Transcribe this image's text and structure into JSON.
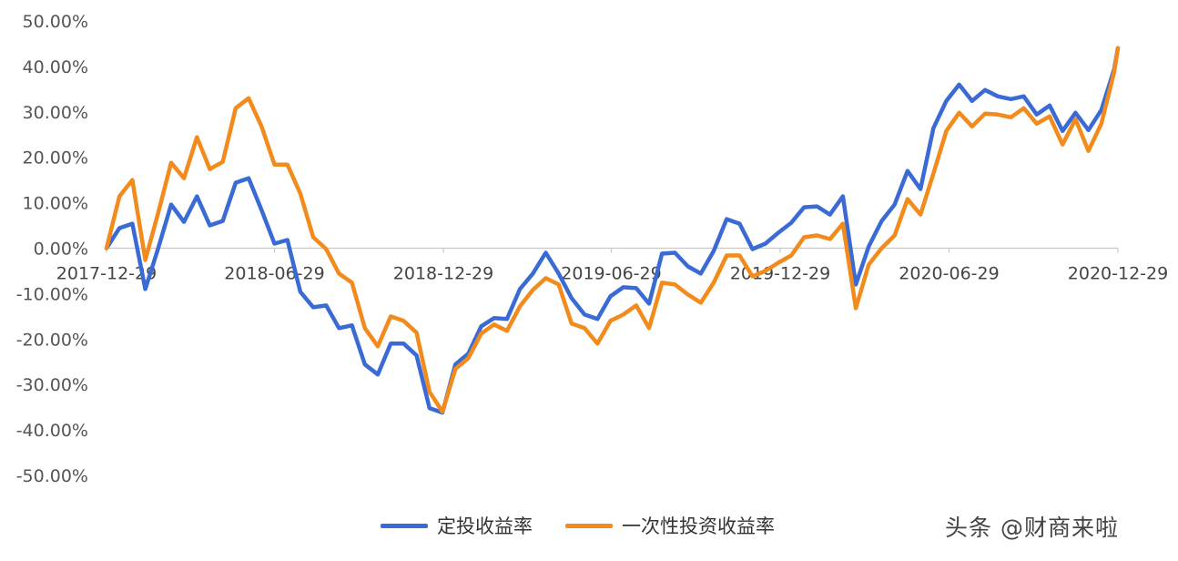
{
  "chart_data": {
    "type": "line",
    "title": "",
    "xlabel": "",
    "ylabel": "",
    "ylim": [
      -50,
      50
    ],
    "yticks": [
      "50.00%",
      "40.00%",
      "30.00%",
      "20.00%",
      "10.00%",
      "0.00%",
      "-10.00%",
      "-20.00%",
      "-30.00%",
      "-40.00%",
      "-50.00%"
    ],
    "ytick_values": [
      50,
      40,
      30,
      20,
      10,
      0,
      -10,
      -20,
      -30,
      -40,
      -50
    ],
    "xticks": [
      "2017-12-29",
      "2018-06-29",
      "2018-12-29",
      "2019-06-29",
      "2019-12-29",
      "2020-06-29",
      "2020-12-29"
    ],
    "xlim": [
      "2017-12-29",
      "2020-12-29"
    ],
    "grid": false,
    "legend_position": "bottom",
    "x": [
      "2017-12-29",
      "2018-01-12",
      "2018-01-26",
      "2018-02-09",
      "2018-02-23",
      "2018-03-09",
      "2018-03-23",
      "2018-04-06",
      "2018-04-20",
      "2018-05-04",
      "2018-05-18",
      "2018-06-01",
      "2018-06-15",
      "2018-06-29",
      "2018-07-13",
      "2018-07-27",
      "2018-08-10",
      "2018-08-24",
      "2018-09-07",
      "2018-09-21",
      "2018-10-05",
      "2018-10-19",
      "2018-11-02",
      "2018-11-16",
      "2018-11-30",
      "2018-12-14",
      "2018-12-28",
      "2019-01-11",
      "2019-01-25",
      "2019-02-08",
      "2019-02-22",
      "2019-03-08",
      "2019-03-22",
      "2019-04-05",
      "2019-04-19",
      "2019-05-03",
      "2019-05-17",
      "2019-05-31",
      "2019-06-14",
      "2019-06-28",
      "2019-07-12",
      "2019-07-26",
      "2019-08-09",
      "2019-08-23",
      "2019-09-06",
      "2019-09-20",
      "2019-10-04",
      "2019-10-18",
      "2019-11-01",
      "2019-11-15",
      "2019-11-29",
      "2019-12-13",
      "2019-12-27",
      "2020-01-10",
      "2020-01-24",
      "2020-02-07",
      "2020-02-21",
      "2020-03-06",
      "2020-03-20",
      "2020-04-03",
      "2020-04-17",
      "2020-05-01",
      "2020-05-15",
      "2020-05-29",
      "2020-06-12",
      "2020-06-26",
      "2020-07-10",
      "2020-07-24",
      "2020-08-07",
      "2020-08-21",
      "2020-09-04",
      "2020-09-18",
      "2020-10-02",
      "2020-10-16",
      "2020-10-30",
      "2020-11-13",
      "2020-11-27",
      "2020-12-11",
      "2020-12-25",
      "2020-12-29"
    ],
    "series": [
      {
        "name": "定投收益率",
        "color": "#3a6bd4",
        "values": [
          0,
          4.4,
          5.4,
          -9,
          0,
          9.6,
          5.8,
          11.4,
          5,
          6,
          14.4,
          15.4,
          8.4,
          1,
          1.8,
          -9.6,
          -13,
          -12.6,
          -17.6,
          -17,
          -25.6,
          -27.8,
          -21,
          -21,
          -23.6,
          -35.2,
          -36.2,
          -25.6,
          -23.2,
          -17.2,
          -15.4,
          -15.6,
          -9,
          -5.6,
          -1,
          -5.6,
          -11,
          -14.6,
          -15.6,
          -10.6,
          -8.6,
          -8.8,
          -12.2,
          -1.2,
          -1,
          -4,
          -5.6,
          -0.6,
          6.4,
          5.4,
          -0.2,
          1,
          3.4,
          5.6,
          9,
          9.2,
          7.4,
          11.4,
          -8,
          0.4,
          6,
          9.6,
          17,
          13,
          26.4,
          32.4,
          36,
          32.4,
          34.8,
          33.4,
          32.8,
          33.4,
          29.4,
          31.4,
          25.8,
          29.8,
          26,
          30.4,
          39.4,
          44
        ]
      },
      {
        "name": "一次性投资收益率",
        "color": "#f28a1c",
        "values": [
          0,
          11.4,
          15,
          -2.6,
          7.8,
          18.8,
          15.4,
          24.4,
          17.4,
          19,
          30.8,
          33,
          26.8,
          18.4,
          18.4,
          12,
          2.4,
          -0.2,
          -5.6,
          -7.6,
          -17.6,
          -21.6,
          -15,
          -16,
          -18.6,
          -31.6,
          -36,
          -26.6,
          -24.2,
          -18.8,
          -16.8,
          -18.2,
          -12.8,
          -9.2,
          -6.6,
          -8,
          -16.6,
          -17.6,
          -21,
          -16,
          -14.6,
          -12.6,
          -17.6,
          -7.6,
          -8,
          -10.2,
          -12,
          -7.6,
          -1.6,
          -1.6,
          -6.2,
          -5,
          -3.2,
          -1.6,
          2.4,
          2.8,
          2,
          5.4,
          -13.2,
          -3.6,
          0,
          2.8,
          10.8,
          7.4,
          16.4,
          25.8,
          29.8,
          26.8,
          29.6,
          29.4,
          28.8,
          30.8,
          27.4,
          29,
          22.8,
          28.4,
          21.4,
          27.4,
          38.8,
          44
        ]
      }
    ]
  },
  "watermark": "头条 @财商来啦"
}
